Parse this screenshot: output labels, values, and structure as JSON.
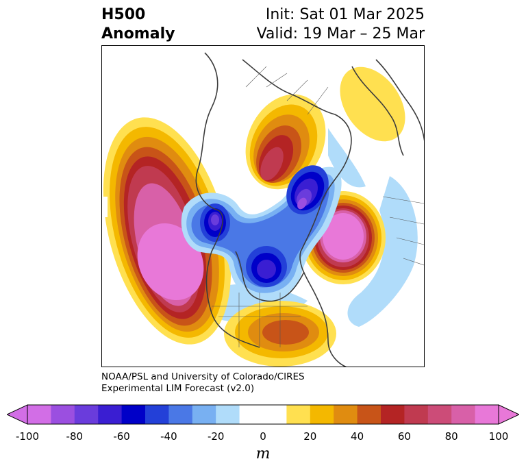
{
  "header": {
    "title_line1": "H500",
    "title_line2": "Anomaly",
    "init": "Init: Sat 01 Mar 2025",
    "valid": "Valid: 19 Mar – 25 Mar"
  },
  "credit": {
    "line1": "NOAA/PSL and University of Colorado/CIRES",
    "line2": "Experimental LIM Forecast (v2.0)"
  },
  "colorbar": {
    "unit": "m",
    "ticks": [
      "-100",
      "-80",
      "-60",
      "-40",
      "-20",
      "0",
      "20",
      "40",
      "60",
      "80",
      "100"
    ],
    "colors": [
      "#d26ee6",
      "#9b4fe0",
      "#6a3cdc",
      "#3a1ed2",
      "#0000c8",
      "#2340d8",
      "#4a78e6",
      "#78b0f2",
      "#b0dcfa",
      "#ffffff",
      "#ffffff",
      "#ffe050",
      "#f4b800",
      "#e08c10",
      "#c85418",
      "#b42424",
      "#c03a50",
      "#cc4c78",
      "#d860a8",
      "#e878d8"
    ]
  }
}
